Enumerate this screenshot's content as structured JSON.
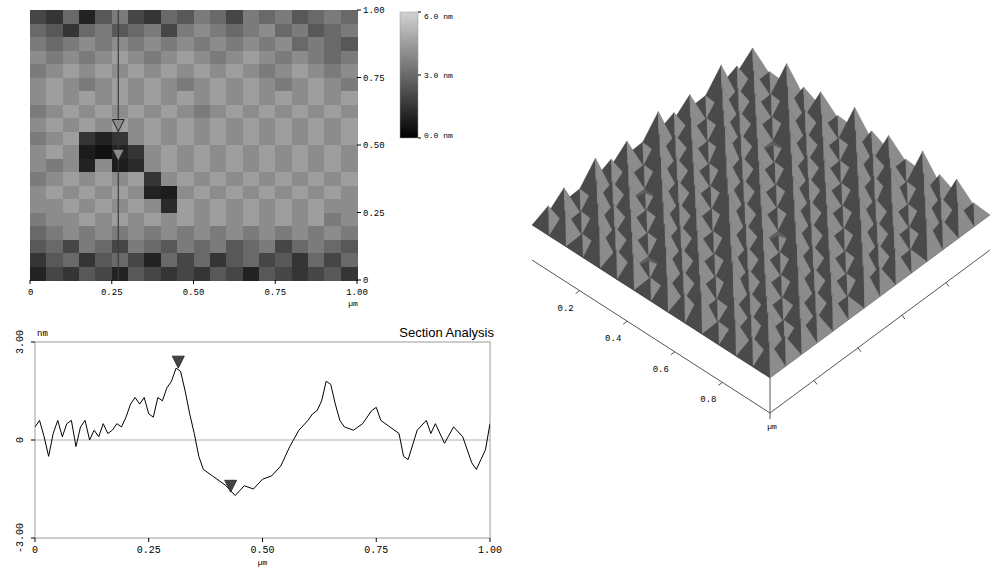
{
  "chart_data": [
    {
      "type": "heatmap",
      "x_label": "µm",
      "xlim": [
        0,
        1
      ],
      "xticks": [
        0,
        {
          "value": 0.25,
          "label": "0.25"
        },
        {
          "value": 0.5,
          "label": "0.50"
        },
        {
          "value": 0.75,
          "label": "0.75"
        },
        {
          "value": 1,
          "label": "1.00"
        }
      ],
      "ylim": [
        0,
        1
      ],
      "yticks": [
        0,
        {
          "value": 0.25,
          "label": "0.25"
        },
        {
          "value": 0.5,
          "label": "0.50"
        },
        {
          "value": 0.75,
          "label": "0.75"
        },
        {
          "value": 1,
          "label": "1.00"
        }
      ],
      "cells": [
        [
          2.0,
          1.5,
          3.0,
          1.0,
          2.5,
          3.5,
          2.0,
          1.5,
          3.0,
          2.5,
          3.5,
          3.0,
          2.0,
          3.5,
          3.0,
          3.5,
          2.5,
          3.0,
          3.5,
          3.0
        ],
        [
          3.0,
          2.5,
          1.5,
          3.0,
          3.5,
          2.5,
          3.0,
          3.5,
          2.0,
          3.5,
          4.0,
          3.5,
          3.0,
          3.5,
          4.0,
          3.0,
          3.5,
          2.5,
          3.0,
          3.5
        ],
        [
          3.5,
          3.0,
          3.5,
          4.0,
          3.5,
          4.0,
          3.5,
          4.0,
          3.5,
          4.0,
          3.5,
          4.0,
          3.5,
          4.0,
          3.5,
          4.0,
          3.0,
          3.5,
          3.0,
          2.5
        ],
        [
          4.0,
          3.5,
          4.0,
          3.5,
          4.0,
          4.5,
          4.0,
          3.5,
          4.0,
          4.5,
          4.0,
          3.5,
          4.0,
          4.5,
          4.0,
          3.5,
          4.0,
          3.5,
          3.0,
          3.5
        ],
        [
          3.5,
          4.0,
          4.5,
          4.0,
          4.5,
          4.0,
          4.5,
          4.0,
          4.5,
          4.0,
          4.5,
          4.0,
          4.5,
          4.0,
          3.5,
          4.0,
          4.5,
          4.0,
          3.5,
          4.0
        ],
        [
          4.0,
          4.5,
          4.0,
          3.5,
          4.0,
          4.5,
          4.0,
          4.5,
          4.0,
          3.5,
          4.0,
          4.5,
          4.0,
          4.5,
          4.0,
          3.5,
          4.0,
          4.5,
          4.0,
          3.5
        ],
        [
          4.0,
          4.5,
          4.0,
          4.5,
          4.0,
          4.5,
          4.0,
          4.5,
          4.0,
          4.5,
          4.0,
          4.5,
          4.0,
          4.5,
          4.0,
          4.5,
          4.0,
          4.5,
          4.0,
          4.5
        ],
        [
          3.5,
          4.0,
          4.5,
          4.0,
          4.5,
          4.0,
          4.5,
          4.0,
          4.5,
          4.0,
          3.5,
          4.0,
          4.5,
          4.0,
          4.5,
          4.0,
          4.5,
          4.0,
          4.5,
          4.0
        ],
        [
          4.0,
          4.5,
          4.0,
          4.5,
          4.0,
          4.5,
          4.0,
          4.5,
          4.0,
          4.5,
          4.0,
          4.5,
          4.0,
          4.5,
          4.0,
          4.5,
          4.0,
          4.5,
          4.0,
          4.5
        ],
        [
          3.5,
          4.0,
          4.5,
          1.5,
          1.0,
          1.5,
          4.0,
          4.5,
          4.0,
          4.5,
          4.0,
          4.5,
          4.0,
          4.5,
          4.0,
          4.5,
          4.0,
          4.5,
          4.0,
          4.5
        ],
        [
          4.0,
          4.5,
          4.0,
          0.8,
          0.5,
          1.0,
          1.5,
          4.0,
          4.5,
          4.0,
          4.5,
          4.0,
          4.5,
          4.0,
          4.5,
          4.0,
          4.5,
          4.0,
          4.5,
          4.0
        ],
        [
          4.0,
          3.5,
          4.0,
          1.0,
          4.0,
          0.8,
          1.2,
          4.0,
          4.5,
          4.0,
          4.5,
          4.0,
          4.5,
          4.0,
          4.5,
          4.0,
          4.5,
          4.0,
          4.5,
          4.0
        ],
        [
          3.5,
          4.0,
          4.5,
          4.0,
          4.5,
          4.0,
          4.5,
          1.5,
          4.0,
          4.5,
          4.0,
          4.5,
          4.0,
          4.5,
          4.0,
          4.5,
          4.0,
          4.5,
          4.0,
          4.5
        ],
        [
          4.0,
          4.5,
          4.0,
          4.5,
          4.0,
          4.5,
          4.0,
          1.0,
          0.8,
          4.0,
          4.5,
          4.0,
          4.5,
          4.0,
          4.5,
          4.0,
          4.5,
          4.0,
          4.5,
          4.0
        ],
        [
          4.0,
          4.0,
          4.5,
          4.0,
          4.5,
          4.0,
          4.5,
          4.0,
          1.2,
          4.5,
          4.0,
          4.5,
          4.0,
          4.5,
          4.0,
          4.5,
          4.0,
          4.5,
          4.0,
          4.0
        ],
        [
          3.5,
          4.0,
          4.0,
          4.5,
          4.0,
          4.5,
          4.0,
          4.5,
          4.0,
          4.5,
          4.0,
          4.5,
          4.0,
          4.5,
          4.0,
          4.5,
          4.0,
          4.5,
          3.5,
          4.0
        ],
        [
          3.0,
          3.5,
          4.0,
          3.5,
          4.0,
          3.5,
          4.0,
          3.5,
          4.0,
          3.5,
          4.0,
          3.5,
          4.0,
          3.5,
          4.0,
          3.5,
          4.0,
          3.5,
          4.0,
          3.5
        ],
        [
          2.5,
          3.0,
          2.0,
          3.5,
          3.0,
          2.0,
          3.5,
          3.0,
          2.5,
          3.5,
          3.0,
          3.5,
          2.5,
          3.0,
          3.5,
          2.0,
          3.0,
          3.5,
          3.0,
          2.5
        ],
        [
          1.5,
          2.5,
          3.0,
          1.5,
          2.5,
          3.0,
          2.0,
          1.0,
          3.0,
          2.0,
          3.0,
          1.5,
          2.5,
          3.0,
          2.0,
          2.5,
          1.5,
          3.0,
          2.0,
          3.0
        ],
        [
          1.0,
          2.0,
          1.5,
          2.5,
          2.0,
          1.0,
          2.5,
          2.0,
          1.5,
          2.0,
          1.5,
          2.5,
          2.0,
          1.0,
          2.5,
          2.0,
          1.5,
          2.0,
          2.5,
          1.5
        ]
      ],
      "colorbar": {
        "range": [
          0,
          6
        ],
        "ticks": [
          {
            "value": 0,
            "label": "0.0 nm"
          },
          {
            "value": 3,
            "label": "3.0 nm"
          },
          {
            "value": 6,
            "label": "6.0 nm"
          }
        ]
      },
      "section_x": 0.27,
      "section_cursors": [
        0.55,
        0.44
      ]
    },
    {
      "type": "line",
      "title": "Section Analysis",
      "x_label": "µm",
      "y_label": "nm",
      "xlim": [
        0,
        1
      ],
      "xticks": [
        0,
        {
          "value": 0.25,
          "label": "0.25"
        },
        {
          "value": 0.5,
          "label": "0.50"
        },
        {
          "value": 0.75,
          "label": "0.75"
        },
        {
          "value": 1,
          "label": "1.00"
        }
      ],
      "ylim": [
        -3,
        3
      ],
      "yticks": [
        {
          "value": -3,
          "label": "-3.00"
        },
        0,
        {
          "value": 3,
          "label": "3.00"
        }
      ],
      "grid": false,
      "color": "#000000",
      "x": [
        0,
        0.01,
        0.02,
        0.03,
        0.04,
        0.05,
        0.06,
        0.07,
        0.08,
        0.09,
        0.1,
        0.11,
        0.12,
        0.13,
        0.14,
        0.15,
        0.16,
        0.17,
        0.18,
        0.19,
        0.2,
        0.21,
        0.22,
        0.23,
        0.24,
        0.25,
        0.26,
        0.27,
        0.28,
        0.29,
        0.3,
        0.31,
        0.32,
        0.33,
        0.34,
        0.35,
        0.36,
        0.37,
        0.38,
        0.39,
        0.4,
        0.42,
        0.44,
        0.46,
        0.48,
        0.5,
        0.52,
        0.54,
        0.56,
        0.58,
        0.6,
        0.61,
        0.62,
        0.63,
        0.64,
        0.65,
        0.66,
        0.67,
        0.68,
        0.7,
        0.72,
        0.74,
        0.75,
        0.76,
        0.78,
        0.8,
        0.81,
        0.82,
        0.84,
        0.86,
        0.87,
        0.88,
        0.9,
        0.92,
        0.94,
        0.96,
        0.97,
        0.98,
        0.99,
        1.0
      ],
      "values": [
        0.4,
        0.6,
        0.1,
        -0.5,
        0.2,
        0.6,
        0.1,
        0.5,
        0.6,
        -0.2,
        0.4,
        0.6,
        0.0,
        0.3,
        0.1,
        0.5,
        0.2,
        0.3,
        0.5,
        0.4,
        0.7,
        1.1,
        1.3,
        1.1,
        1.3,
        0.8,
        0.7,
        1.3,
        1.2,
        1.6,
        1.8,
        2.2,
        2.1,
        1.5,
        0.8,
        0.2,
        -0.5,
        -0.9,
        -1.0,
        -1.1,
        -1.2,
        -1.4,
        -1.7,
        -1.4,
        -1.5,
        -1.2,
        -1.1,
        -0.8,
        -0.2,
        0.3,
        0.6,
        0.8,
        0.9,
        1.2,
        1.8,
        1.7,
        1.1,
        0.6,
        0.4,
        0.3,
        0.5,
        0.9,
        1.0,
        0.6,
        0.4,
        0.2,
        -0.5,
        -0.6,
        0.3,
        0.6,
        0.2,
        0.5,
        -0.1,
        0.4,
        0.1,
        -0.7,
        -0.9,
        -0.6,
        -0.3,
        0.5
      ],
      "cursors": [
        {
          "x": 0.315,
          "y": 2.2
        },
        {
          "x": 0.43,
          "y": -1.6
        }
      ]
    },
    {
      "type": "surface3d",
      "x_label": "µm",
      "xlim": [
        0,
        1
      ],
      "xticks": [
        0.2,
        0.4,
        0.6,
        0.8
      ],
      "ylim": [
        0,
        1
      ],
      "yticks": [
        0.2,
        0.4,
        0.6,
        0.8
      ],
      "zlim": [
        0,
        6
      ],
      "tick_labels": "x",
      "cells": [
        [
          3,
          4,
          2,
          5,
          3,
          4,
          2,
          4,
          3,
          5,
          2,
          4,
          3,
          4
        ],
        [
          4,
          2,
          5,
          3,
          4,
          1,
          5,
          3,
          4,
          2,
          4,
          3,
          5,
          3
        ],
        [
          2,
          5,
          3,
          4,
          2,
          5,
          3,
          4,
          2,
          6,
          3,
          4,
          2,
          4
        ],
        [
          5,
          3,
          4,
          2,
          5,
          3,
          4,
          2,
          5,
          3,
          4,
          2,
          4,
          3
        ],
        [
          3,
          4,
          1,
          5,
          3,
          4,
          2,
          5,
          3,
          4,
          2,
          5,
          3,
          4
        ],
        [
          4,
          2,
          5,
          3,
          4,
          2,
          6,
          3,
          4,
          2,
          5,
          3,
          4,
          2
        ],
        [
          2,
          5,
          3,
          4,
          2,
          5,
          3,
          4,
          1,
          5,
          3,
          4,
          2,
          5
        ],
        [
          5,
          3,
          4,
          2,
          5,
          3,
          4,
          2,
          5,
          3,
          4,
          2,
          5,
          3
        ],
        [
          3,
          4,
          2,
          6,
          3,
          4,
          2,
          5,
          3,
          4,
          2,
          5,
          3,
          4
        ],
        [
          4,
          2,
          5,
          3,
          4,
          2,
          5,
          3,
          4,
          2,
          5,
          3,
          4,
          2
        ],
        [
          2,
          5,
          3,
          4,
          1,
          5,
          3,
          4,
          2,
          5,
          3,
          4,
          2,
          5
        ],
        [
          5,
          3,
          4,
          2,
          5,
          3,
          4,
          2,
          5,
          3,
          6,
          2,
          5,
          3
        ],
        [
          3,
          4,
          2,
          5,
          3,
          4,
          2,
          5,
          3,
          4,
          2,
          5,
          3,
          4
        ],
        [
          4,
          2,
          5,
          3,
          4,
          2,
          5,
          3,
          4,
          2,
          5,
          3,
          4,
          2
        ]
      ]
    }
  ]
}
